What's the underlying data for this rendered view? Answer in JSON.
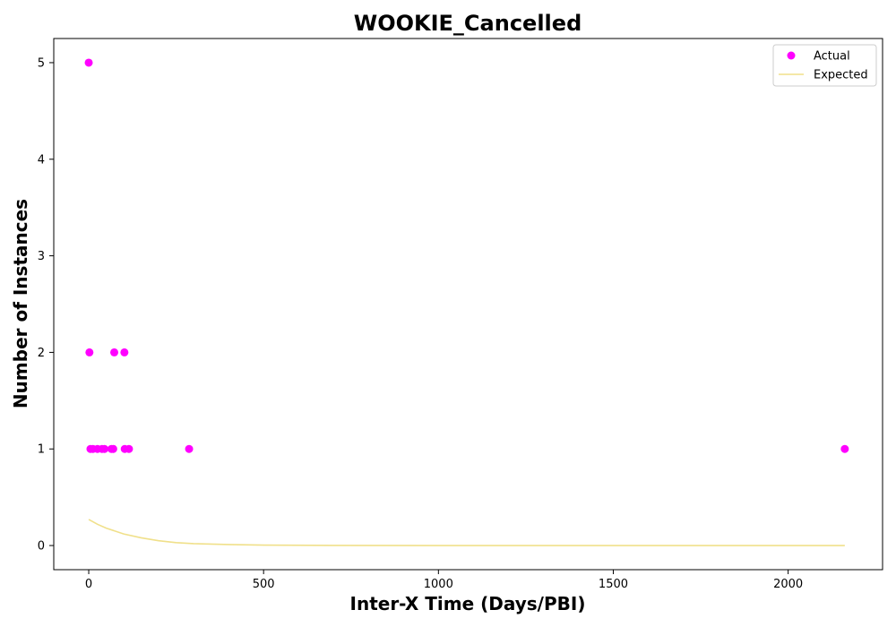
{
  "colors": {
    "actual": "#ff00ff",
    "expected": "#f0e08a",
    "axes": "#000000",
    "background": "#ffffff"
  },
  "chart_data": {
    "type": "scatter",
    "title": "WOOKIE_Cancelled",
    "xlabel": "Inter-X Time (Days/PBI)",
    "ylabel": "Number of Instances",
    "xlim": [
      -100,
      2270
    ],
    "ylim": [
      -0.25,
      5.25
    ],
    "xticks": [
      0,
      500,
      1000,
      1500,
      2000
    ],
    "yticks": [
      0,
      1,
      2,
      3,
      4,
      5
    ],
    "grid": false,
    "legend_position": "top-right",
    "series": [
      {
        "name": "Actual",
        "kind": "scatter",
        "color": "#ff00ff",
        "points": [
          {
            "x": 0,
            "y": 5
          },
          {
            "x": 2,
            "y": 2
          },
          {
            "x": 73,
            "y": 2
          },
          {
            "x": 102,
            "y": 2
          },
          {
            "x": 5,
            "y": 1
          },
          {
            "x": 12,
            "y": 1
          },
          {
            "x": 25,
            "y": 1
          },
          {
            "x": 38,
            "y": 1
          },
          {
            "x": 45,
            "y": 1
          },
          {
            "x": 65,
            "y": 1
          },
          {
            "x": 70,
            "y": 1
          },
          {
            "x": 103,
            "y": 1
          },
          {
            "x": 115,
            "y": 1
          },
          {
            "x": 287,
            "y": 1
          },
          {
            "x": 2162,
            "y": 1
          }
        ]
      },
      {
        "name": "Expected",
        "kind": "line",
        "color": "#f0e08a",
        "points": [
          {
            "x": 0,
            "y": 0.27
          },
          {
            "x": 25,
            "y": 0.22
          },
          {
            "x": 50,
            "y": 0.18
          },
          {
            "x": 100,
            "y": 0.12
          },
          {
            "x": 150,
            "y": 0.08
          },
          {
            "x": 200,
            "y": 0.05
          },
          {
            "x": 250,
            "y": 0.03
          },
          {
            "x": 300,
            "y": 0.02
          },
          {
            "x": 400,
            "y": 0.01
          },
          {
            "x": 500,
            "y": 0.004
          },
          {
            "x": 700,
            "y": 0.001
          },
          {
            "x": 1000,
            "y": 0.0
          },
          {
            "x": 1500,
            "y": 0.0
          },
          {
            "x": 2162,
            "y": 0.0
          }
        ]
      }
    ]
  }
}
